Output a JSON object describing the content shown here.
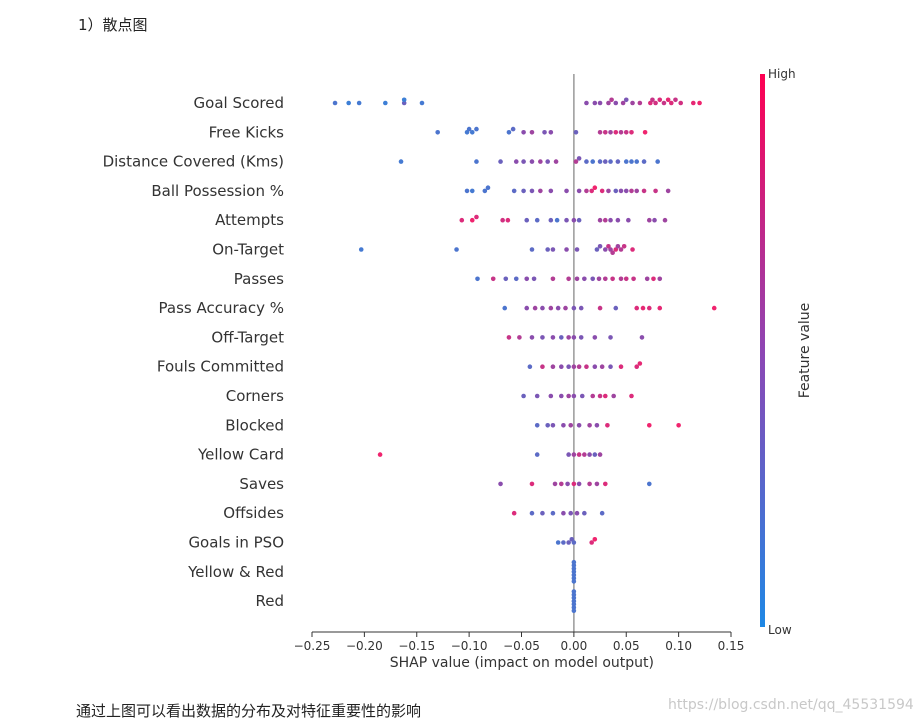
{
  "heading": "1）散点图",
  "caption": "通过上图可以看出数据的分布及对特征重要性的影响",
  "watermark": "https://blog.csdn.net/qq_45531594",
  "chart_data": {
    "type": "scatter",
    "subtype": "shap-beeswarm",
    "title": "",
    "xlabel": "SHAP value (impact on model output)",
    "ylabel": "",
    "xlim": [
      -0.25,
      0.15
    ],
    "xticks": [
      -0.25,
      -0.2,
      -0.15,
      -0.1,
      -0.05,
      0.0,
      0.05,
      0.1,
      0.15
    ],
    "xtick_labels": [
      "−0.25",
      "−0.20",
      "−0.15",
      "−0.10",
      "−0.05",
      "0.00",
      "0.05",
      "0.10",
      "0.15"
    ],
    "grid": false,
    "colorbar": {
      "label": "Feature value",
      "high_label": "High",
      "low_label": "Low",
      "low_color": "#1e88e5",
      "high_color": "#ff0052"
    },
    "colors": {
      "low": "#3d7fd6",
      "mid": "#8a4dad",
      "high": "#f0246e",
      "zero_line": "#999999",
      "axis": "#333333"
    },
    "features": [
      {
        "name": "Goal Scored",
        "points": [
          [
            -0.228,
            0.1
          ],
          [
            -0.215,
            0.0
          ],
          [
            -0.205,
            0.05
          ],
          [
            -0.18,
            0.0
          ],
          [
            -0.162,
            0.3
          ],
          [
            -0.162,
            0.0
          ],
          [
            -0.145,
            0.05
          ],
          [
            0.012,
            0.5
          ],
          [
            0.02,
            0.5
          ],
          [
            0.025,
            0.5
          ],
          [
            0.033,
            0.6
          ],
          [
            0.036,
            0.7
          ],
          [
            0.04,
            0.5
          ],
          [
            0.047,
            0.6
          ],
          [
            0.05,
            0.4
          ],
          [
            0.056,
            0.6
          ],
          [
            0.063,
            0.7
          ],
          [
            0.073,
            0.9
          ],
          [
            0.075,
            0.8
          ],
          [
            0.078,
            0.85
          ],
          [
            0.082,
            0.9
          ],
          [
            0.086,
            0.8
          ],
          [
            0.09,
            0.95
          ],
          [
            0.093,
            0.9
          ],
          [
            0.097,
            0.8
          ],
          [
            0.102,
            0.85
          ],
          [
            0.114,
            0.95
          ],
          [
            0.12,
            1.0
          ]
        ]
      },
      {
        "name": "Free Kicks",
        "points": [
          [
            -0.13,
            0.1
          ],
          [
            -0.102,
            0.05
          ],
          [
            -0.1,
            0.1
          ],
          [
            -0.097,
            0.05
          ],
          [
            -0.093,
            0.1
          ],
          [
            -0.062,
            0.1
          ],
          [
            -0.058,
            0.2
          ],
          [
            -0.048,
            0.5
          ],
          [
            -0.04,
            0.6
          ],
          [
            -0.028,
            0.4
          ],
          [
            -0.022,
            0.5
          ],
          [
            0.002,
            0.3
          ],
          [
            0.025,
            0.7
          ],
          [
            0.03,
            0.8
          ],
          [
            0.035,
            0.6
          ],
          [
            0.04,
            0.9
          ],
          [
            0.045,
            0.7
          ],
          [
            0.05,
            0.8
          ],
          [
            0.055,
            0.9
          ],
          [
            0.068,
            1.0
          ]
        ]
      },
      {
        "name": "Distance Covered (Kms)",
        "points": [
          [
            -0.165,
            0.05
          ],
          [
            -0.093,
            0.1
          ],
          [
            -0.07,
            0.3
          ],
          [
            -0.055,
            0.5
          ],
          [
            -0.048,
            0.4
          ],
          [
            -0.04,
            0.5
          ],
          [
            -0.032,
            0.6
          ],
          [
            -0.025,
            0.4
          ],
          [
            -0.017,
            0.6
          ],
          [
            0.002,
            0.7
          ],
          [
            0.005,
            0.4
          ],
          [
            0.012,
            0.2
          ],
          [
            0.018,
            0.1
          ],
          [
            0.025,
            0.2
          ],
          [
            0.03,
            0.3
          ],
          [
            0.035,
            0.2
          ],
          [
            0.042,
            0.25
          ],
          [
            0.05,
            0.1
          ],
          [
            0.055,
            0.1
          ],
          [
            0.06,
            0.1
          ],
          [
            0.067,
            0.2
          ],
          [
            0.08,
            0.1
          ]
        ]
      },
      {
        "name": "Ball Possession %",
        "points": [
          [
            -0.102,
            0.1
          ],
          [
            -0.097,
            0.05
          ],
          [
            -0.085,
            0.1
          ],
          [
            -0.082,
            0.1
          ],
          [
            -0.057,
            0.2
          ],
          [
            -0.048,
            0.3
          ],
          [
            -0.04,
            0.4
          ],
          [
            -0.032,
            0.6
          ],
          [
            -0.022,
            0.5
          ],
          [
            -0.007,
            0.5
          ],
          [
            0.005,
            0.5
          ],
          [
            0.012,
            0.7
          ],
          [
            0.017,
            0.9
          ],
          [
            0.02,
            1.0
          ],
          [
            0.027,
            0.9
          ],
          [
            0.033,
            0.6
          ],
          [
            0.04,
            0.3
          ],
          [
            0.045,
            0.5
          ],
          [
            0.05,
            0.5
          ],
          [
            0.055,
            0.7
          ],
          [
            0.06,
            0.6
          ],
          [
            0.067,
            0.8
          ],
          [
            0.078,
            0.8
          ],
          [
            0.09,
            0.6
          ]
        ]
      },
      {
        "name": "Attempts",
        "points": [
          [
            -0.107,
            0.9
          ],
          [
            -0.097,
            1.0
          ],
          [
            -0.093,
            0.9
          ],
          [
            -0.068,
            0.85
          ],
          [
            -0.063,
            0.9
          ],
          [
            -0.045,
            0.3
          ],
          [
            -0.035,
            0.2
          ],
          [
            -0.022,
            0.3
          ],
          [
            -0.016,
            0.1
          ],
          [
            -0.007,
            0.4
          ],
          [
            0.0,
            0.5
          ],
          [
            0.005,
            0.3
          ],
          [
            0.025,
            0.6
          ],
          [
            0.03,
            0.7
          ],
          [
            0.035,
            0.5
          ],
          [
            0.042,
            0.5
          ],
          [
            0.052,
            0.5
          ],
          [
            0.072,
            0.6
          ],
          [
            0.077,
            0.5
          ],
          [
            0.087,
            0.6
          ]
        ]
      },
      {
        "name": "On-Target",
        "points": [
          [
            -0.203,
            0.05
          ],
          [
            -0.112,
            0.1
          ],
          [
            -0.04,
            0.2
          ],
          [
            -0.025,
            0.3
          ],
          [
            -0.02,
            0.4
          ],
          [
            -0.007,
            0.5
          ],
          [
            0.003,
            0.4
          ],
          [
            0.022,
            0.3
          ],
          [
            0.025,
            0.4
          ],
          [
            0.03,
            0.5
          ],
          [
            0.033,
            0.8
          ],
          [
            0.035,
            0.6
          ],
          [
            0.037,
            0.7
          ],
          [
            0.04,
            0.9
          ],
          [
            0.042,
            0.6
          ],
          [
            0.045,
            0.7
          ],
          [
            0.048,
            0.8
          ],
          [
            0.056,
            0.9
          ]
        ]
      },
      {
        "name": "Passes",
        "points": [
          [
            -0.092,
            0.1
          ],
          [
            -0.077,
            0.8
          ],
          [
            -0.065,
            0.3
          ],
          [
            -0.055,
            0.2
          ],
          [
            -0.045,
            0.5
          ],
          [
            -0.038,
            0.4
          ],
          [
            -0.02,
            0.7
          ],
          [
            -0.005,
            0.7
          ],
          [
            0.003,
            0.6
          ],
          [
            0.01,
            0.5
          ],
          [
            0.018,
            0.4
          ],
          [
            0.024,
            0.6
          ],
          [
            0.03,
            0.7
          ],
          [
            0.037,
            0.8
          ],
          [
            0.045,
            0.7
          ],
          [
            0.05,
            0.8
          ],
          [
            0.057,
            0.8
          ],
          [
            0.07,
            0.6
          ],
          [
            0.076,
            0.9
          ],
          [
            0.082,
            0.6
          ]
        ]
      },
      {
        "name": "Pass Accuracy %",
        "points": [
          [
            -0.066,
            0.1
          ],
          [
            -0.045,
            0.5
          ],
          [
            -0.037,
            0.6
          ],
          [
            -0.03,
            0.5
          ],
          [
            -0.022,
            0.6
          ],
          [
            -0.015,
            0.5
          ],
          [
            -0.008,
            0.6
          ],
          [
            0.0,
            0.4
          ],
          [
            0.007,
            0.4
          ],
          [
            0.025,
            0.8
          ],
          [
            0.04,
            0.3
          ],
          [
            0.06,
            0.9
          ],
          [
            0.066,
            0.95
          ],
          [
            0.072,
            0.9
          ],
          [
            0.082,
            0.95
          ],
          [
            0.134,
            1.0
          ]
        ]
      },
      {
        "name": "Off-Target",
        "points": [
          [
            -0.062,
            0.8
          ],
          [
            -0.052,
            0.7
          ],
          [
            -0.04,
            0.5
          ],
          [
            -0.03,
            0.4
          ],
          [
            -0.02,
            0.5
          ],
          [
            -0.012,
            0.3
          ],
          [
            -0.005,
            0.6
          ],
          [
            0.0,
            0.5
          ],
          [
            0.007,
            0.4
          ],
          [
            0.02,
            0.5
          ],
          [
            0.035,
            0.4
          ],
          [
            0.065,
            0.5
          ]
        ]
      },
      {
        "name": "Fouls Committed",
        "points": [
          [
            -0.042,
            0.2
          ],
          [
            -0.03,
            0.8
          ],
          [
            -0.02,
            0.6
          ],
          [
            -0.012,
            0.5
          ],
          [
            -0.005,
            0.4
          ],
          [
            0.0,
            0.6
          ],
          [
            0.005,
            0.7
          ],
          [
            0.012,
            0.8
          ],
          [
            0.02,
            0.5
          ],
          [
            0.027,
            0.6
          ],
          [
            0.035,
            0.4
          ],
          [
            0.045,
            0.9
          ],
          [
            0.06,
            0.9
          ],
          [
            0.063,
            0.95
          ]
        ]
      },
      {
        "name": "Corners",
        "points": [
          [
            -0.048,
            0.3
          ],
          [
            -0.035,
            0.4
          ],
          [
            -0.022,
            0.5
          ],
          [
            -0.012,
            0.5
          ],
          [
            -0.005,
            0.6
          ],
          [
            0.0,
            0.5
          ],
          [
            0.008,
            0.4
          ],
          [
            0.018,
            0.7
          ],
          [
            0.025,
            0.8
          ],
          [
            0.03,
            0.9
          ],
          [
            0.038,
            0.6
          ],
          [
            0.055,
            0.9
          ]
        ]
      },
      {
        "name": "Blocked",
        "points": [
          [
            -0.035,
            0.2
          ],
          [
            -0.025,
            0.3
          ],
          [
            -0.02,
            0.4
          ],
          [
            -0.01,
            0.5
          ],
          [
            -0.003,
            0.6
          ],
          [
            0.005,
            0.5
          ],
          [
            0.015,
            0.6
          ],
          [
            0.022,
            0.5
          ],
          [
            0.032,
            0.9
          ],
          [
            0.072,
            1.0
          ],
          [
            0.1,
            1.0
          ]
        ]
      },
      {
        "name": "Yellow Card",
        "points": [
          [
            -0.185,
            1.0
          ],
          [
            -0.035,
            0.2
          ],
          [
            -0.005,
            0.4
          ],
          [
            0.0,
            0.6
          ],
          [
            0.005,
            0.8
          ],
          [
            0.01,
            0.7
          ],
          [
            0.015,
            0.5
          ],
          [
            0.02,
            0.3
          ],
          [
            0.025,
            0.6
          ]
        ]
      },
      {
        "name": "Saves",
        "points": [
          [
            -0.07,
            0.5
          ],
          [
            -0.04,
            0.9
          ],
          [
            -0.018,
            0.6
          ],
          [
            -0.012,
            0.7
          ],
          [
            -0.006,
            0.5
          ],
          [
            0.0,
            0.9
          ],
          [
            0.005,
            0.5
          ],
          [
            0.015,
            0.7
          ],
          [
            0.022,
            0.6
          ],
          [
            0.03,
            0.9
          ],
          [
            0.072,
            0.1
          ]
        ]
      },
      {
        "name": "Offsides",
        "points": [
          [
            -0.057,
            0.9
          ],
          [
            -0.04,
            0.2
          ],
          [
            -0.03,
            0.3
          ],
          [
            -0.02,
            0.2
          ],
          [
            -0.01,
            0.5
          ],
          [
            -0.003,
            0.4
          ],
          [
            0.003,
            0.5
          ],
          [
            0.01,
            0.3
          ],
          [
            0.027,
            0.2
          ]
        ]
      },
      {
        "name": "Goals in PSO",
        "points": [
          [
            -0.015,
            0.1
          ],
          [
            -0.01,
            0.2
          ],
          [
            -0.005,
            0.3
          ],
          [
            -0.002,
            0.3
          ],
          [
            0.0,
            0.2
          ],
          [
            0.017,
            0.9
          ],
          [
            0.02,
            1.0
          ]
        ]
      },
      {
        "name": "Yellow & Red",
        "points": [
          [
            0.0,
            0.1
          ],
          [
            0.0,
            0.1
          ],
          [
            0.0,
            0.1
          ],
          [
            0.0,
            0.1
          ],
          [
            0.0,
            0.1
          ],
          [
            0.0,
            0.1
          ],
          [
            0.0,
            0.1
          ]
        ]
      },
      {
        "name": "Red",
        "points": [
          [
            0.0,
            0.1
          ],
          [
            0.0,
            0.1
          ],
          [
            0.0,
            0.1
          ],
          [
            0.0,
            0.1
          ],
          [
            0.0,
            0.1
          ],
          [
            0.0,
            0.1
          ],
          [
            0.0,
            0.1
          ]
        ]
      }
    ]
  }
}
